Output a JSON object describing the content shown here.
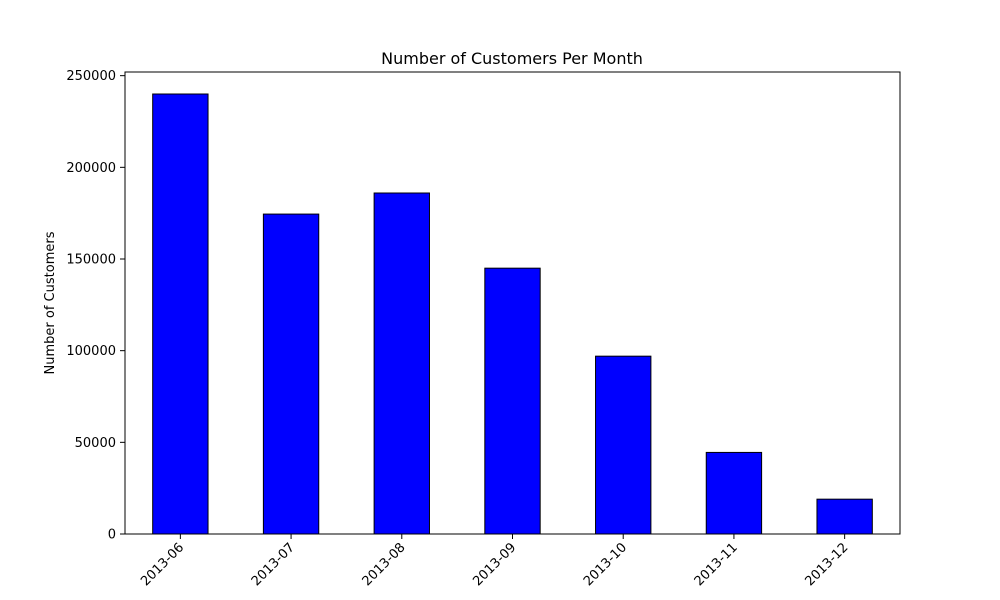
{
  "chart_data": {
    "type": "bar",
    "title": "Number of Customers Per Month",
    "xlabel": "",
    "ylabel": "Number of Customers",
    "categories": [
      "2013-06",
      "2013-07",
      "2013-08",
      "2013-09",
      "2013-10",
      "2013-11",
      "2013-12"
    ],
    "values": [
      240000,
      174500,
      186000,
      145000,
      97000,
      44500,
      19000
    ],
    "ylim": [
      0,
      252000
    ],
    "yticks": [
      0,
      50000,
      100000,
      150000,
      200000,
      250000
    ],
    "ytick_labels": [
      "0",
      "50000",
      "100000",
      "150000",
      "200000",
      "250000"
    ],
    "grid": false,
    "bar_color": "#0000ff",
    "edge_color": "#000000"
  }
}
